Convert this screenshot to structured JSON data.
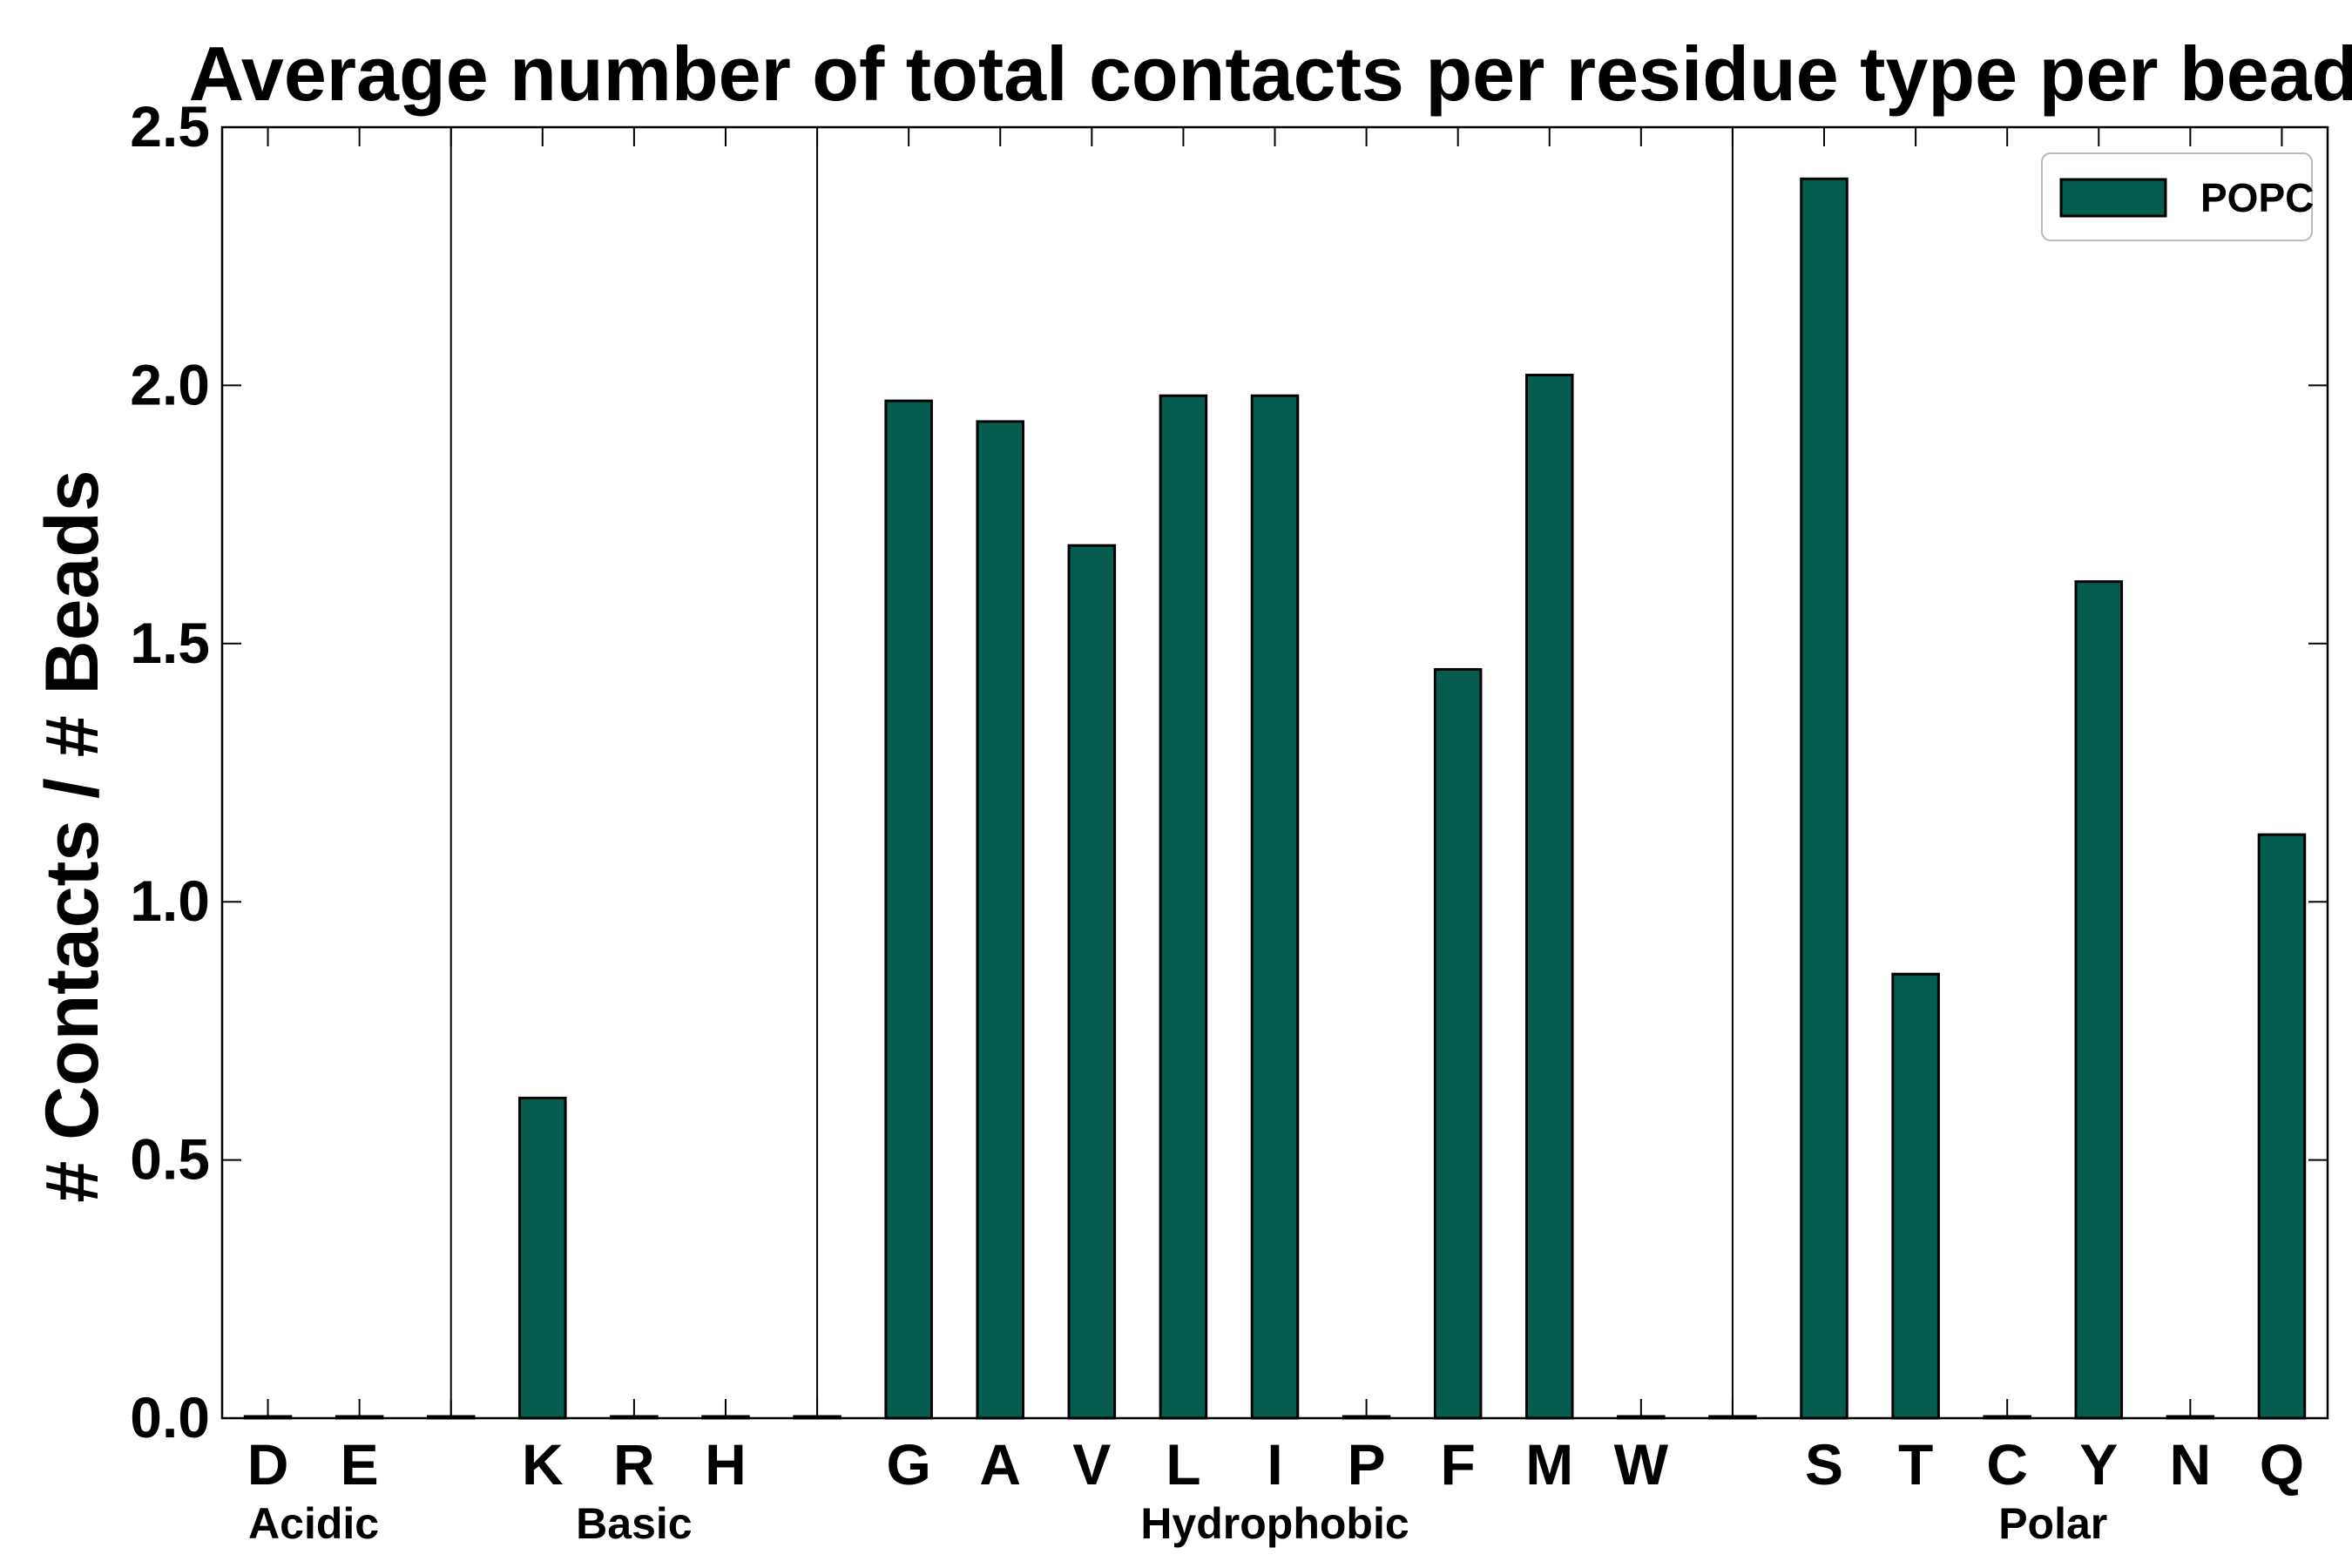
{
  "chart_data": {
    "type": "bar",
    "title": "Average number of total contacts per residue type per bead",
    "ylabel": "# Contacts / # Beads",
    "xlabel": "",
    "ylim": [
      0,
      2.5
    ],
    "yticks": [
      "0.0",
      "0.5",
      "1.0",
      "1.5",
      "2.0",
      "2.5"
    ],
    "categories": [
      "D",
      "E",
      "",
      "K",
      "R",
      "H",
      "",
      "G",
      "A",
      "V",
      "L",
      "I",
      "P",
      "F",
      "M",
      "W",
      "",
      "S",
      "T",
      "C",
      "Y",
      "N",
      "Q"
    ],
    "series": [
      {
        "name": "POPC",
        "color": "#065c4f",
        "values": [
          0,
          0,
          0,
          0.62,
          0,
          0,
          0,
          1.97,
          1.93,
          1.69,
          1.98,
          1.98,
          0,
          1.45,
          2.02,
          0,
          0,
          2.4,
          0.86,
          0,
          1.62,
          0,
          1.13
        ]
      }
    ],
    "groups": [
      {
        "label": "Acidic",
        "members": [
          "D",
          "E"
        ]
      },
      {
        "label": "Basic",
        "members": [
          "K",
          "R",
          "H"
        ]
      },
      {
        "label": "Hydrophobic",
        "members": [
          "G",
          "A",
          "V",
          "L",
          "I",
          "P",
          "F",
          "M",
          "W"
        ]
      },
      {
        "label": "Polar",
        "members": [
          "S",
          "T",
          "C",
          "Y",
          "N",
          "Q"
        ]
      }
    ],
    "legend_position": "top-right",
    "grid": false
  }
}
